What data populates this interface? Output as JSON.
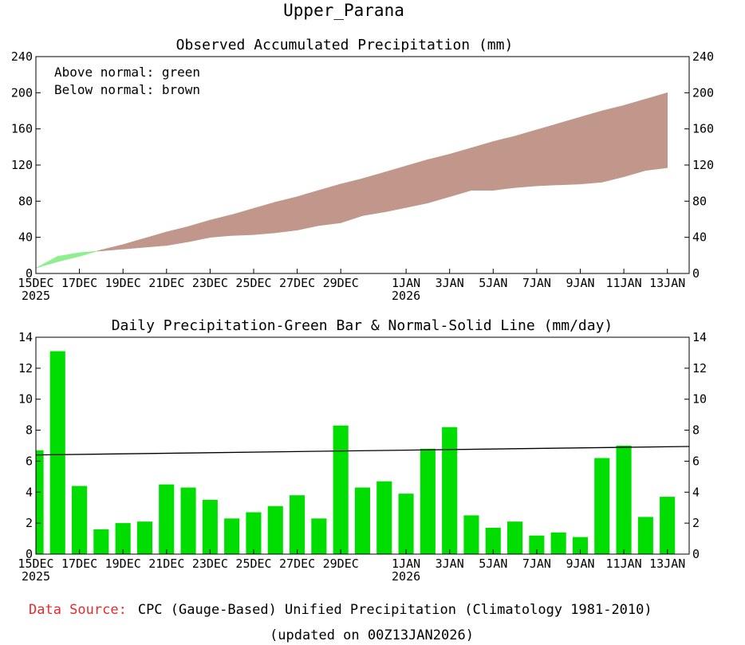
{
  "title": "Upper_Parana",
  "footer": {
    "source_label": "Data Source:",
    "source_text": "CPC (Gauge-Based) Unified Precipitation (Climatology 1981-2010)",
    "updated": "(updated on 00Z13JAN2026)"
  },
  "colors": {
    "above": "#90ee90",
    "below": "#c0978a",
    "bar": "#00dd00",
    "normal_line": "#000000",
    "source_label": "#e8292b"
  },
  "x_axis": {
    "day_labels": [
      "15DEC",
      "17DEC",
      "19DEC",
      "21DEC",
      "23DEC",
      "25DEC",
      "27DEC",
      "29DEC",
      "1JAN",
      "3JAN",
      "5JAN",
      "7JAN",
      "9JAN",
      "11JAN",
      "13JAN"
    ],
    "day_index": [
      0,
      2,
      4,
      6,
      8,
      10,
      12,
      14,
      17,
      19,
      21,
      23,
      25,
      27,
      29
    ],
    "year_labels": [
      "2025",
      "2026"
    ],
    "year_index": [
      0,
      17
    ]
  },
  "chart_data": [
    {
      "type": "area",
      "title": "Observed Accumulated Precipitation (mm)",
      "ylim": [
        0,
        240
      ],
      "yticks": [
        "0",
        "40",
        "80",
        "120",
        "160",
        "200",
        "240"
      ],
      "annotations": [
        "Above normal: green",
        "Below normal: brown"
      ],
      "days": 30,
      "series": [
        {
          "name": "Observed accumulated",
          "values": [
            6,
            19,
            23,
            25,
            27,
            29,
            31,
            35,
            40,
            42,
            43,
            45,
            48,
            53,
            56,
            64,
            68,
            73,
            78,
            85,
            92,
            92,
            95,
            97,
            98,
            99,
            101,
            107,
            114,
            117
          ]
        },
        {
          "name": "Normal accumulated",
          "values": [
            6,
            13,
            19,
            26,
            32,
            39,
            46,
            52,
            59,
            65,
            72,
            79,
            85,
            92,
            99,
            105,
            112,
            119,
            126,
            132,
            139,
            146,
            152,
            159,
            166,
            173,
            180,
            186,
            193,
            200
          ]
        }
      ]
    },
    {
      "type": "bar",
      "title": "Daily Precipitation-Green Bar & Normal-Solid Line (mm/day)",
      "ylim": [
        0,
        14
      ],
      "yticks": [
        "0",
        "2",
        "4",
        "6",
        "8",
        "10",
        "12",
        "14"
      ],
      "series": [
        {
          "name": "Daily precipitation",
          "values": [
            6.7,
            13.1,
            4.4,
            1.6,
            2.0,
            2.1,
            4.5,
            4.3,
            3.5,
            2.3,
            2.7,
            3.1,
            3.8,
            2.3,
            8.3,
            4.3,
            4.7,
            3.9,
            6.8,
            8.2,
            2.5,
            1.7,
            2.1,
            1.2,
            1.4,
            1.1,
            6.2,
            7.0,
            2.4,
            3.7
          ]
        },
        {
          "name": "Normal",
          "line": [
            6.4,
            6.95
          ]
        }
      ]
    }
  ]
}
